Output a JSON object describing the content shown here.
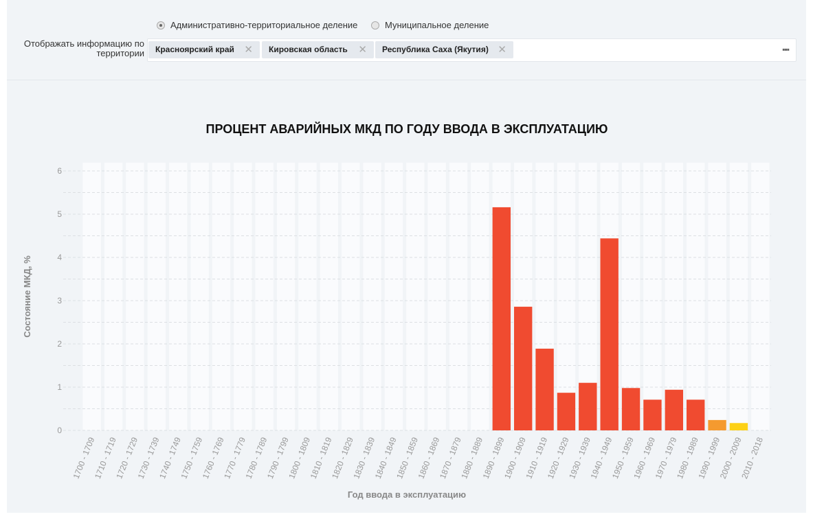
{
  "filters": {
    "radio_options": [
      {
        "label": "Административно-территориальное деление",
        "selected": true
      },
      {
        "label": "Муниципальное деление",
        "selected": false
      }
    ],
    "territory_label": "Отображать информацию по территории",
    "territory_label_lines": [
      "Отображать информацию по",
      "территории"
    ],
    "tags": [
      "Красноярский край",
      "Кировская область",
      "Республика Саха (Якутия)"
    ],
    "more_icon": "ellipsis-icon"
  },
  "chart_data": {
    "type": "bar",
    "title": "ПРОЦЕНТ АВАРИЙНЫХ МКД ПО ГОДУ ВВОДА В ЭКСПЛУАТАЦИЮ",
    "xlabel": "Год ввода в эксплуатацию",
    "ylabel": "Состояние МКД, %",
    "ylim": [
      0,
      6
    ],
    "yticks": [
      0,
      1,
      2,
      3,
      4,
      5,
      6
    ],
    "grid": true,
    "categories": [
      "1700 - 1709",
      "1710 - 1719",
      "1720 - 1729",
      "1730 - 1739",
      "1740 - 1749",
      "1750 - 1759",
      "1760 - 1769",
      "1770 - 1779",
      "1780 - 1789",
      "1790 - 1799",
      "1800 - 1809",
      "1810 - 1819",
      "1820 - 1829",
      "1830 - 1839",
      "1840 - 1849",
      "1850 - 1859",
      "1860 - 1869",
      "1870 - 1879",
      "1880 - 1889",
      "1890 - 1899",
      "1900 - 1909",
      "1910 - 1919",
      "1920 - 1929",
      "1930 - 1939",
      "1940 - 1949",
      "1950 - 1959",
      "1960 - 1969",
      "1970 - 1979",
      "1980 - 1989",
      "1990 - 1999",
      "2000 - 2009",
      "2010 - 2018"
    ],
    "values": [
      0,
      0,
      0,
      0,
      0,
      0,
      0,
      0,
      0,
      0,
      0,
      0,
      0,
      0,
      0,
      0,
      0,
      0,
      0,
      5.16,
      2.86,
      1.89,
      0.87,
      1.1,
      4.44,
      0.98,
      0.71,
      0.94,
      0.71,
      0.24,
      0.17,
      0
    ],
    "colors": {
      "default": "#f04b30",
      "1990 - 1999": "#f59a2f",
      "2000 - 2009": "#fdd116"
    }
  }
}
